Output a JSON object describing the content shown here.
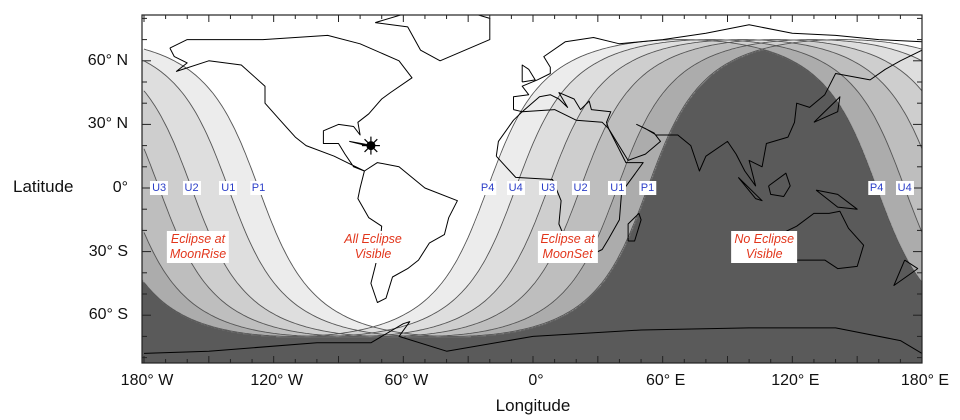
{
  "axes": {
    "x_title": "Longitude",
    "y_title": "Latitude",
    "x_ticks": [
      {
        "lon": -180,
        "label": "180° W"
      },
      {
        "lon": -120,
        "label": "120° W"
      },
      {
        "lon": -60,
        "label": "60° W"
      },
      {
        "lon": 0,
        "label": "0°"
      },
      {
        "lon": 60,
        "label": "60° E"
      },
      {
        "lon": 120,
        "label": "120° E"
      },
      {
        "lon": 180,
        "label": "180° E"
      }
    ],
    "y_ticks": [
      {
        "lat": 60,
        "label": "60° N"
      },
      {
        "lat": 30,
        "label": "30° N"
      },
      {
        "lat": 0,
        "label": "0°"
      },
      {
        "lat": -30,
        "label": "30° S"
      },
      {
        "lat": -60,
        "label": "60° S"
      }
    ]
  },
  "sublunar_point": {
    "lon": -75,
    "lat": 20,
    "icon": "moon-zenith-icon"
  },
  "contacts": [
    {
      "label": "P1",
      "moonset_equator_lon": 53,
      "moonrise_equator_lon": -127
    },
    {
      "label": "U1",
      "moonset_equator_lon": 39,
      "moonrise_equator_lon": -141
    },
    {
      "label": "U2",
      "moonset_equator_lon": 22,
      "moonrise_equator_lon": -158
    },
    {
      "label": "U3",
      "moonset_equator_lon": 7,
      "moonrise_equator_lon": -173
    },
    {
      "label": "U4",
      "moonset_equator_lon": -8,
      "moonrise_equator_lon": 172
    },
    {
      "label": "P4",
      "moonset_equator_lon": -21,
      "moonrise_equator_lon": 159
    }
  ],
  "regions": [
    {
      "line1": "Eclipse at",
      "line2": "MoonRise",
      "lon": -155,
      "lat": -28
    },
    {
      "line1": "All Eclipse",
      "line2": "Visible",
      "lon": -74,
      "lat": -28
    },
    {
      "line1": "Eclipse at",
      "line2": "MoonSet",
      "lon": 16,
      "lat": -28
    },
    {
      "line1": "No Eclipse",
      "line2": "Visible",
      "lon": 107,
      "lat": -28
    }
  ],
  "colors": {
    "no_eclipse": "#5a5a5a",
    "all_visible": "#ffffff",
    "contact_label": "#2b3ec8",
    "region_label": "#e2361c"
  }
}
